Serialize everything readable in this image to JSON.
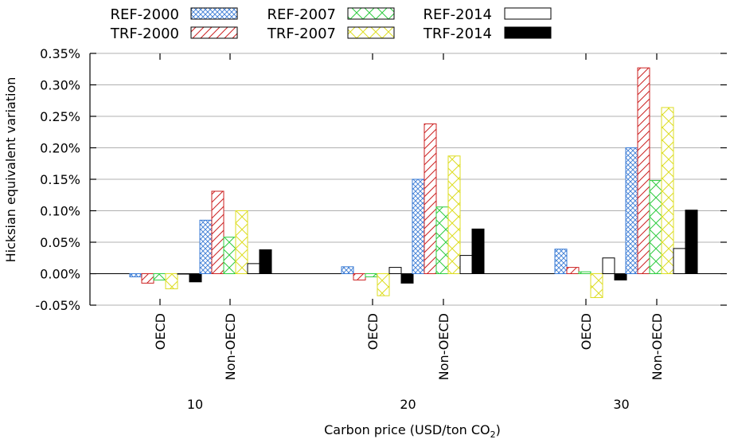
{
  "chart_data": {
    "type": "bar",
    "title": "",
    "xlabel": "Carbon price (USD/ton CO",
    "xlabel_sub": "2",
    "xlabel_close": ")",
    "ylabel": "Hicksian equivalent variation",
    "ylim": [
      -0.0005,
      0.0035
    ],
    "yticks": [
      {
        "v": -0.0005,
        "label": "-0.05%"
      },
      {
        "v": 0.0,
        "label": "0.00%"
      },
      {
        "v": 0.0005,
        "label": "0.05%"
      },
      {
        "v": 0.001,
        "label": "0.10%"
      },
      {
        "v": 0.0015,
        "label": "0.15%"
      },
      {
        "v": 0.002,
        "label": "0.20%"
      },
      {
        "v": 0.0025,
        "label": "0.25%"
      },
      {
        "v": 0.003,
        "label": "0.30%"
      },
      {
        "v": 0.0035,
        "label": "0.35%"
      }
    ],
    "grid": "horizontal",
    "legend_position": "top-left",
    "region_labels": [
      "OECD",
      "Non-OECD"
    ],
    "carbon_prices": [
      "10",
      "20",
      "30"
    ],
    "series": [
      {
        "name": "REF-2000",
        "color": "#3a7bd5",
        "pattern": "crosshatch",
        "values": [
          [
            -5e-05,
            0.00085
          ],
          [
            0.00011,
            0.0015
          ],
          [
            0.00039,
            0.002
          ]
        ]
      },
      {
        "name": "TRF-2000",
        "color": "#cc2222",
        "pattern": "diagonal",
        "values": [
          [
            -0.00015,
            0.00131
          ],
          [
            -0.0001,
            0.00238
          ],
          [
            0.0001,
            0.00327
          ]
        ]
      },
      {
        "name": "REF-2007",
        "color": "#2ecc40",
        "pattern": "cross",
        "values": [
          [
            -0.0001,
            0.00058
          ],
          [
            -5e-05,
            0.00106
          ],
          [
            3e-05,
            0.00148
          ]
        ]
      },
      {
        "name": "TRF-2007",
        "color": "#dddd22",
        "pattern": "cross",
        "values": [
          [
            -0.00024,
            0.001
          ],
          [
            -0.00035,
            0.00187
          ],
          [
            -0.00038,
            0.00264
          ]
        ]
      },
      {
        "name": "REF-2014",
        "color": "#000000",
        "pattern": "empty",
        "values": [
          [
            0.0,
            0.00016
          ],
          [
            0.0001,
            0.00029
          ],
          [
            0.00025,
            0.0004
          ]
        ]
      },
      {
        "name": "TRF-2014",
        "color": "#000000",
        "pattern": "solid",
        "values": [
          [
            -0.00013,
            0.00038
          ],
          [
            -0.00015,
            0.00071
          ],
          [
            -0.0001,
            0.00101
          ]
        ]
      }
    ]
  }
}
